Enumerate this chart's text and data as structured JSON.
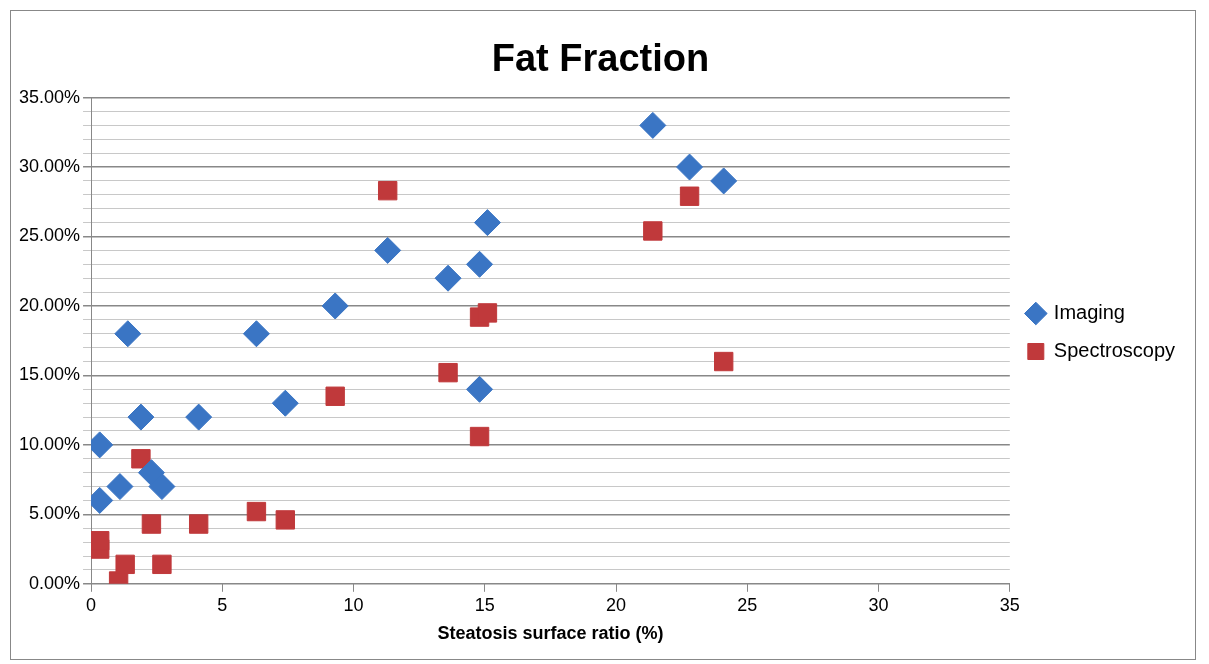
{
  "chart_data": {
    "type": "scatter",
    "title": "Fat Fraction",
    "xlabel": "Steatosis surface ratio (%)",
    "xlim": [
      0,
      35
    ],
    "xticks": [
      0,
      5,
      10,
      15,
      20,
      25,
      30,
      35
    ],
    "ylim": [
      0,
      35
    ],
    "yticks": [
      {
        "value": 0,
        "label": "0.00%"
      },
      {
        "value": 1,
        "label": null
      },
      {
        "value": 2,
        "label": null
      },
      {
        "value": 3,
        "label": null
      },
      {
        "value": 4,
        "label": null
      },
      {
        "value": 5,
        "label": "5.00%"
      },
      {
        "value": 6,
        "label": null
      },
      {
        "value": 7,
        "label": null
      },
      {
        "value": 8,
        "label": null
      },
      {
        "value": 9,
        "label": null
      },
      {
        "value": 10,
        "label": "10.00%"
      },
      {
        "value": 11,
        "label": null
      },
      {
        "value": 12,
        "label": null
      },
      {
        "value": 13,
        "label": null
      },
      {
        "value": 14,
        "label": null
      },
      {
        "value": 15,
        "label": "15.00%"
      },
      {
        "value": 16,
        "label": null
      },
      {
        "value": 17,
        "label": null
      },
      {
        "value": 18,
        "label": null
      },
      {
        "value": 19,
        "label": null
      },
      {
        "value": 20,
        "label": "20.00%"
      },
      {
        "value": 21,
        "label": null
      },
      {
        "value": 22,
        "label": null
      },
      {
        "value": 23,
        "label": null
      },
      {
        "value": 24,
        "label": null
      },
      {
        "value": 25,
        "label": "25.00%"
      },
      {
        "value": 26,
        "label": null
      },
      {
        "value": 27,
        "label": null
      },
      {
        "value": 28,
        "label": null
      },
      {
        "value": 29,
        "label": null
      },
      {
        "value": 30,
        "label": "30.00%"
      },
      {
        "value": 31,
        "label": null
      },
      {
        "value": 32,
        "label": null
      },
      {
        "value": 33,
        "label": null
      },
      {
        "value": 34,
        "label": null
      },
      {
        "value": 35,
        "label": "35.00%"
      }
    ],
    "grid": "y",
    "legend": "right",
    "series": [
      {
        "name": "Imaging",
        "color": "#3a75c4",
        "marker": "diamond",
        "x": [
          0.33,
          0.33,
          1.1,
          1.4,
          1.9,
          2.3,
          2.7,
          4.1,
          6.3,
          7.4,
          9.3,
          11.3,
          13.6,
          14.8,
          15.1,
          14.8,
          21.4,
          22.8,
          24.1
        ],
        "values": [
          10,
          6,
          7,
          18,
          12,
          8,
          7,
          12,
          18,
          13,
          20,
          24,
          22,
          23,
          26,
          14,
          33,
          30,
          29
        ]
      },
      {
        "name": "Spectroscopy",
        "color": "#c0393b",
        "marker": "square",
        "x": [
          0.33,
          0.33,
          1.05,
          1.3,
          2.7,
          1.9,
          2.3,
          4.1,
          6.3,
          7.4,
          9.3,
          11.3,
          13.6,
          14.8,
          14.8,
          15.1,
          21.4,
          22.8,
          24.1
        ],
        "values": [
          2.5,
          3.1,
          0.2,
          1.4,
          1.4,
          9.0,
          4.3,
          4.3,
          5.2,
          4.6,
          13.5,
          28.3,
          15.2,
          10.6,
          19.2,
          19.5,
          25.4,
          27.9,
          16.0
        ]
      }
    ]
  }
}
